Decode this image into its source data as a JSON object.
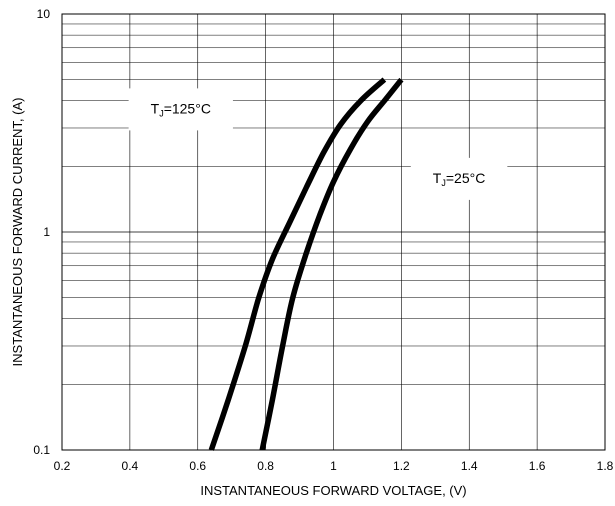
{
  "chart_data": {
    "type": "line",
    "title": "",
    "xlabel": "INSTANTANEOUS FORWARD VOLTAGE, (V)",
    "ylabel": "INSTANTANEOUS FORWARD CURRENT, (A)",
    "xlim": [
      0.2,
      1.8
    ],
    "ylim": [
      0.1,
      10
    ],
    "yscale": "log",
    "grid": true,
    "x_ticks": [
      0.2,
      0.4,
      0.6,
      0.8,
      1.0,
      1.2,
      1.4,
      1.6,
      1.8
    ],
    "x_tick_labels": [
      "0.2",
      "0.4",
      "0.6",
      "0.8",
      "1",
      "1.2",
      "1.4",
      "1.6",
      "1.8"
    ],
    "y_ticks": [
      0.1,
      1,
      10
    ],
    "y_tick_labels": [
      "0.1",
      "1",
      "10"
    ],
    "line_color": "#000000",
    "series": [
      {
        "name": "TJ=125°C",
        "x": [
          0.64,
          0.69,
          0.74,
          0.78,
          0.82,
          0.87,
          0.92,
          0.97,
          1.02,
          1.08,
          1.15
        ],
        "y": [
          0.1,
          0.17,
          0.3,
          0.5,
          0.75,
          1.1,
          1.6,
          2.3,
          3.1,
          4.0,
          5.0
        ]
      },
      {
        "name": "TJ=25°C",
        "x": [
          0.79,
          0.82,
          0.85,
          0.88,
          0.92,
          0.96,
          1.0,
          1.05,
          1.1,
          1.15,
          1.2
        ],
        "y": [
          0.1,
          0.17,
          0.3,
          0.5,
          0.8,
          1.2,
          1.7,
          2.4,
          3.2,
          4.0,
          5.0
        ]
      }
    ],
    "annotations": [
      {
        "label_main": "T",
        "label_sub": "J",
        "label_rest": "=125°C",
        "x": 0.55,
        "y": 3.5
      },
      {
        "label_main": "T",
        "label_sub": "J",
        "label_rest": "=25°C",
        "x": 1.37,
        "y": 1.68
      }
    ]
  }
}
